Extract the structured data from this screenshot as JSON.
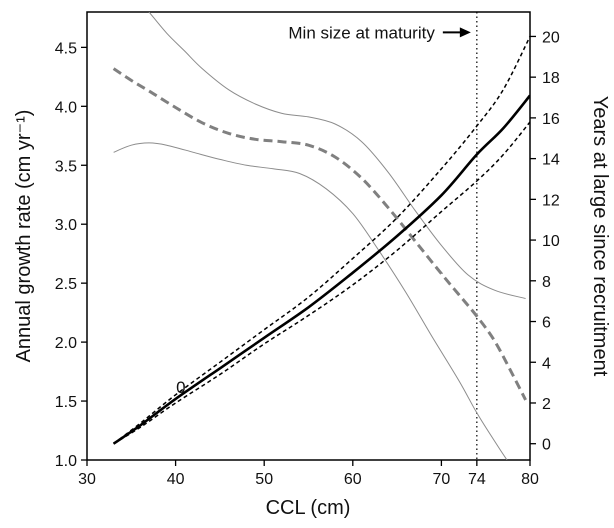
{
  "chart_data": {
    "type": "line",
    "xlabel": "CCL (cm)",
    "ylabel_left": "Annual growth rate (cm yr⁻¹)",
    "ylabel_right": "Years at large since recruitment",
    "xlim": [
      30,
      80
    ],
    "ylim_left": [
      1.0,
      4.8
    ],
    "ylim_right": [
      -0.8,
      21.2
    ],
    "x_ticks": [
      {
        "value": 30,
        "label": "30"
      },
      {
        "value": 40,
        "label": "40"
      },
      {
        "value": 50,
        "label": "50"
      },
      {
        "value": 60,
        "label": "60"
      },
      {
        "value": 70,
        "label": "70"
      },
      {
        "value": 74,
        "label": "74"
      },
      {
        "value": 80,
        "label": "80"
      }
    ],
    "y_left_ticks": [
      {
        "value": 1.0,
        "label": "1.0"
      },
      {
        "value": 1.5,
        "label": "1.5"
      },
      {
        "value": 2.0,
        "label": "2.0"
      },
      {
        "value": 2.5,
        "label": "2.5"
      },
      {
        "value": 3.0,
        "label": "3.0"
      },
      {
        "value": 3.5,
        "label": "3.5"
      },
      {
        "value": 4.0,
        "label": "4.0"
      },
      {
        "value": 4.5,
        "label": "4.5"
      }
    ],
    "y_right_ticks": [
      {
        "value": 0,
        "label": "0"
      },
      {
        "value": 2,
        "label": "2"
      },
      {
        "value": 4,
        "label": "4"
      },
      {
        "value": 6,
        "label": "6"
      },
      {
        "value": 8,
        "label": "8"
      },
      {
        "value": 10,
        "label": "10"
      },
      {
        "value": 12,
        "label": "12"
      },
      {
        "value": 14,
        "label": "14"
      },
      {
        "value": 16,
        "label": "16"
      },
      {
        "value": 18,
        "label": "18"
      },
      {
        "value": 20,
        "label": "20"
      }
    ],
    "series": [
      {
        "axis": "left",
        "style": "dashed-thick",
        "color": "#808080",
        "x": [
          33,
          35,
          37,
          40,
          43,
          46,
          49,
          52,
          55,
          58,
          61,
          64,
          67,
          70,
          72,
          74,
          76,
          78,
          79.5
        ],
        "y": [
          4.32,
          4.22,
          4.13,
          3.99,
          3.86,
          3.77,
          3.72,
          3.7,
          3.67,
          3.57,
          3.39,
          3.14,
          2.86,
          2.58,
          2.4,
          2.22,
          2.01,
          1.73,
          1.51
        ]
      },
      {
        "axis": "left",
        "style": "thin",
        "color": "#8c8c8c",
        "x": [
          37,
          39,
          41,
          43,
          46,
          49,
          52,
          55,
          58,
          61,
          64,
          67,
          70,
          73,
          76,
          79.5
        ],
        "y": [
          4.8,
          4.62,
          4.47,
          4.32,
          4.14,
          4.02,
          3.94,
          3.91,
          3.85,
          3.7,
          3.44,
          3.12,
          2.82,
          2.57,
          2.44,
          2.37
        ]
      },
      {
        "axis": "left",
        "style": "thin",
        "color": "#8c8c8c",
        "x": [
          33,
          35,
          37,
          39,
          42,
          45,
          48,
          51,
          54,
          57,
          60,
          63,
          66,
          69,
          72,
          74,
          76,
          77.4
        ],
        "y": [
          3.61,
          3.67,
          3.69,
          3.67,
          3.61,
          3.55,
          3.5,
          3.47,
          3.43,
          3.3,
          3.09,
          2.77,
          2.42,
          2.04,
          1.67,
          1.4,
          1.16,
          1.0
        ]
      },
      {
        "axis": "right",
        "style": "solid-thick",
        "color": "#000000",
        "x": [
          33,
          36,
          40,
          45,
          50,
          55,
          60,
          65,
          70,
          74,
          77,
          80
        ],
        "y": [
          0,
          0.9,
          2.2,
          3.7,
          5.2,
          6.7,
          8.4,
          10.2,
          12.2,
          14.2,
          15.5,
          17.1
        ]
      },
      {
        "axis": "right",
        "style": "dashed-thin",
        "color": "#000000",
        "x": [
          33,
          36,
          40,
          45,
          50,
          55,
          60,
          65,
          70,
          74,
          77,
          80
        ],
        "y": [
          0,
          1.0,
          2.4,
          4.0,
          5.6,
          7.2,
          9.1,
          11.1,
          13.5,
          15.6,
          17.4,
          20.0
        ]
      },
      {
        "axis": "right",
        "style": "dashed-thin",
        "color": "#000000",
        "x": [
          33,
          36,
          40,
          45,
          50,
          55,
          60,
          65,
          70,
          74,
          77,
          80
        ],
        "y": [
          0,
          0.8,
          2.0,
          3.4,
          4.9,
          6.3,
          7.8,
          9.5,
          11.4,
          12.9,
          14.2,
          15.8
        ]
      }
    ],
    "annotations": [
      {
        "text": "Min size at maturity",
        "x": 74,
        "y_right": 20.2,
        "arrow": "right",
        "line": "dotted-vertical"
      },
      {
        "text": "0",
        "x": 40.6,
        "y_left": 1.62
      }
    ]
  }
}
